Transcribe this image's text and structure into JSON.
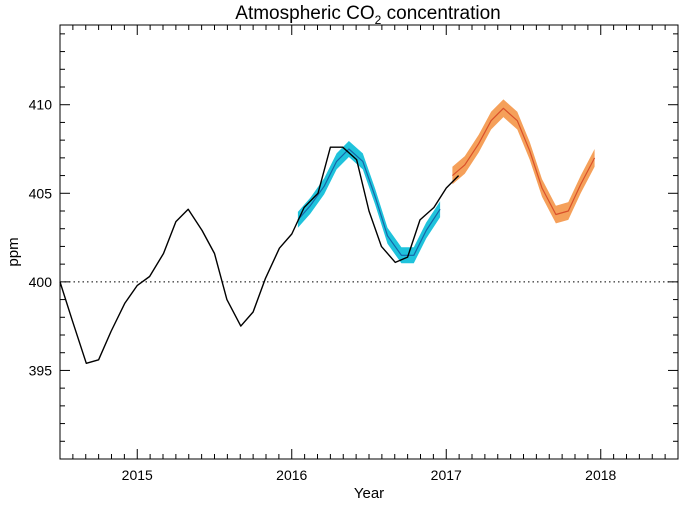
{
  "chart_data": {
    "type": "line",
    "title": {
      "prefix": "Atmospheric CO",
      "subscript": "2",
      "suffix": " concentration"
    },
    "xlabel": "Year",
    "ylabel": "ppm",
    "xlim": [
      2014.5,
      2018.5
    ],
    "ylim": [
      390.0,
      414.5
    ],
    "xticks": [
      2015,
      2016,
      2017,
      2018
    ],
    "xtick_labels": [
      "2015",
      "2016",
      "2017",
      "2018"
    ],
    "yticks": [
      395,
      400,
      405,
      410
    ],
    "ytick_labels": [
      "395",
      "400",
      "405",
      "410"
    ],
    "reference_line": {
      "y": 400,
      "style": "dotted"
    },
    "grid": false,
    "colors": {
      "observed": "#000000",
      "hindcast_line": "#1565a8",
      "hindcast_band": "#1fc3dc",
      "forecast_line": "#d9502a",
      "forecast_band": "#f5a05a"
    },
    "series": [
      {
        "kind": "observed",
        "x": [
          2014.5,
          2014.58,
          2014.67,
          2014.75,
          2014.83,
          2014.92,
          2015.0,
          2015.08,
          2015.17,
          2015.25,
          2015.33,
          2015.42,
          2015.5,
          2015.58,
          2015.67,
          2015.75,
          2015.83,
          2015.92,
          2016.0,
          2016.08,
          2016.17,
          2016.25,
          2016.33,
          2016.42,
          2016.5,
          2016.58,
          2016.67,
          2016.75,
          2016.83,
          2016.92,
          2017.0,
          2017.08
        ],
        "y": [
          400.0,
          397.8,
          395.4,
          395.6,
          397.2,
          398.8,
          399.8,
          400.3,
          401.6,
          403.4,
          404.1,
          402.9,
          401.6,
          399.0,
          397.5,
          398.3,
          400.2,
          401.9,
          402.7,
          404.2,
          405.0,
          407.6,
          407.6,
          406.9,
          404.0,
          402.0,
          401.1,
          401.4,
          403.5,
          404.2,
          405.3,
          406.0
        ]
      },
      {
        "kind": "hindcast",
        "x": [
          2016.04,
          2016.12,
          2016.21,
          2016.29,
          2016.37,
          2016.46,
          2016.54,
          2016.62,
          2016.71,
          2016.79,
          2016.87,
          2016.96
        ],
        "y": [
          403.5,
          404.3,
          405.4,
          406.8,
          407.5,
          406.8,
          404.8,
          402.6,
          401.5,
          401.5,
          402.9,
          404.1
        ],
        "band": 0.45
      },
      {
        "kind": "forecast",
        "x": [
          2017.04,
          2017.12,
          2017.21,
          2017.29,
          2017.37,
          2017.46,
          2017.54,
          2017.62,
          2017.71,
          2017.79,
          2017.87,
          2017.96
        ],
        "y": [
          406.0,
          406.6,
          407.8,
          409.1,
          409.8,
          409.1,
          407.4,
          405.3,
          403.8,
          404.0,
          405.5,
          407.0
        ],
        "band": 0.5
      }
    ]
  }
}
